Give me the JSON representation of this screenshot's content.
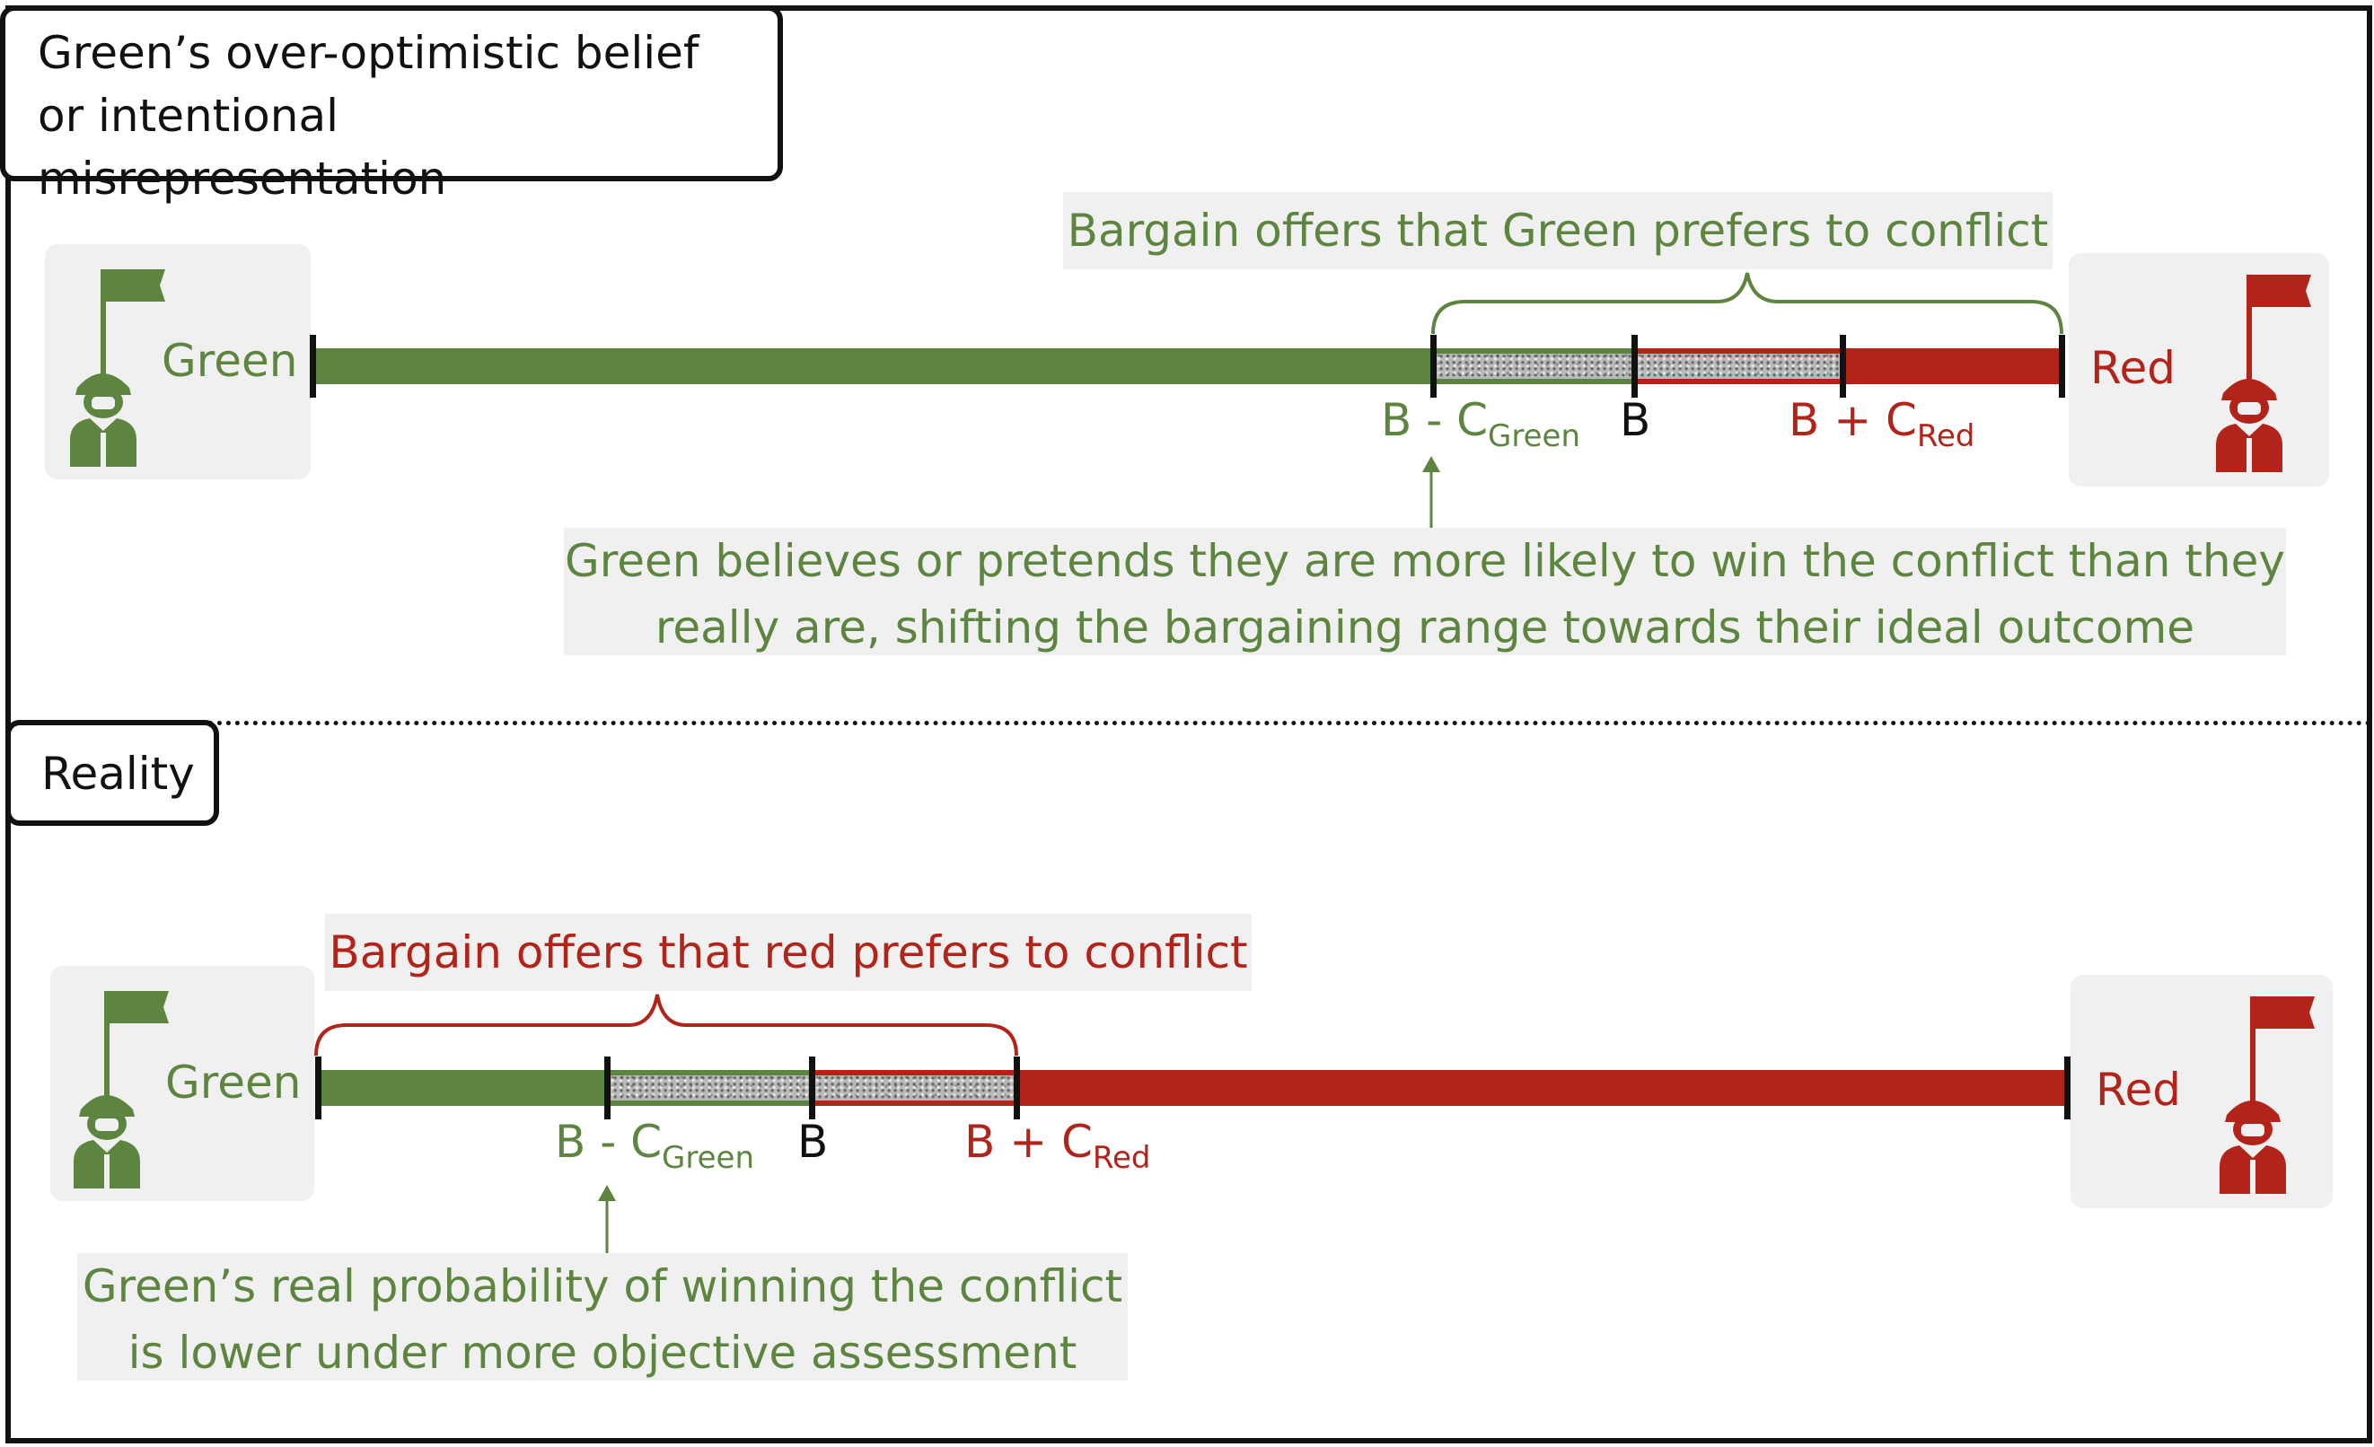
{
  "top": {
    "title": [
      "Green’s over-optimistic belief",
      "or intentional misrepresentation"
    ],
    "bracket_label": "Bargain offers that Green prefers to conflict",
    "left_party": "Green",
    "right_party": "Red",
    "marker_b_minus": "B - C",
    "marker_b_minus_sub": "Green",
    "marker_b": "B",
    "marker_b_plus": "B + C",
    "marker_b_plus_sub": "Red",
    "note": [
      "Green believes or pretends they are more likely to win the conflict than they",
      "really are, shifting the bargaining range towards their ideal outcome"
    ]
  },
  "bottom": {
    "title": "Reality",
    "bracket_label": "Bargain offers that red prefers to conflict",
    "left_party": "Green",
    "right_party": "Red",
    "marker_b_minus": "B - C",
    "marker_b_minus_sub": "Green",
    "marker_b": "B",
    "marker_b_plus": "B + C",
    "marker_b_plus_sub": "Red",
    "note": [
      "Green’s real probability of winning the conflict",
      "is lower under more objective assessment"
    ]
  },
  "colors": {
    "green": "#5d8540",
    "red": "#b2241a",
    "panel": "#f0f0f0",
    "hatch": "#b9b9b9"
  },
  "icons": {
    "left": "green-soldier-with-flag-icon",
    "right": "red-soldier-with-flag-icon"
  }
}
